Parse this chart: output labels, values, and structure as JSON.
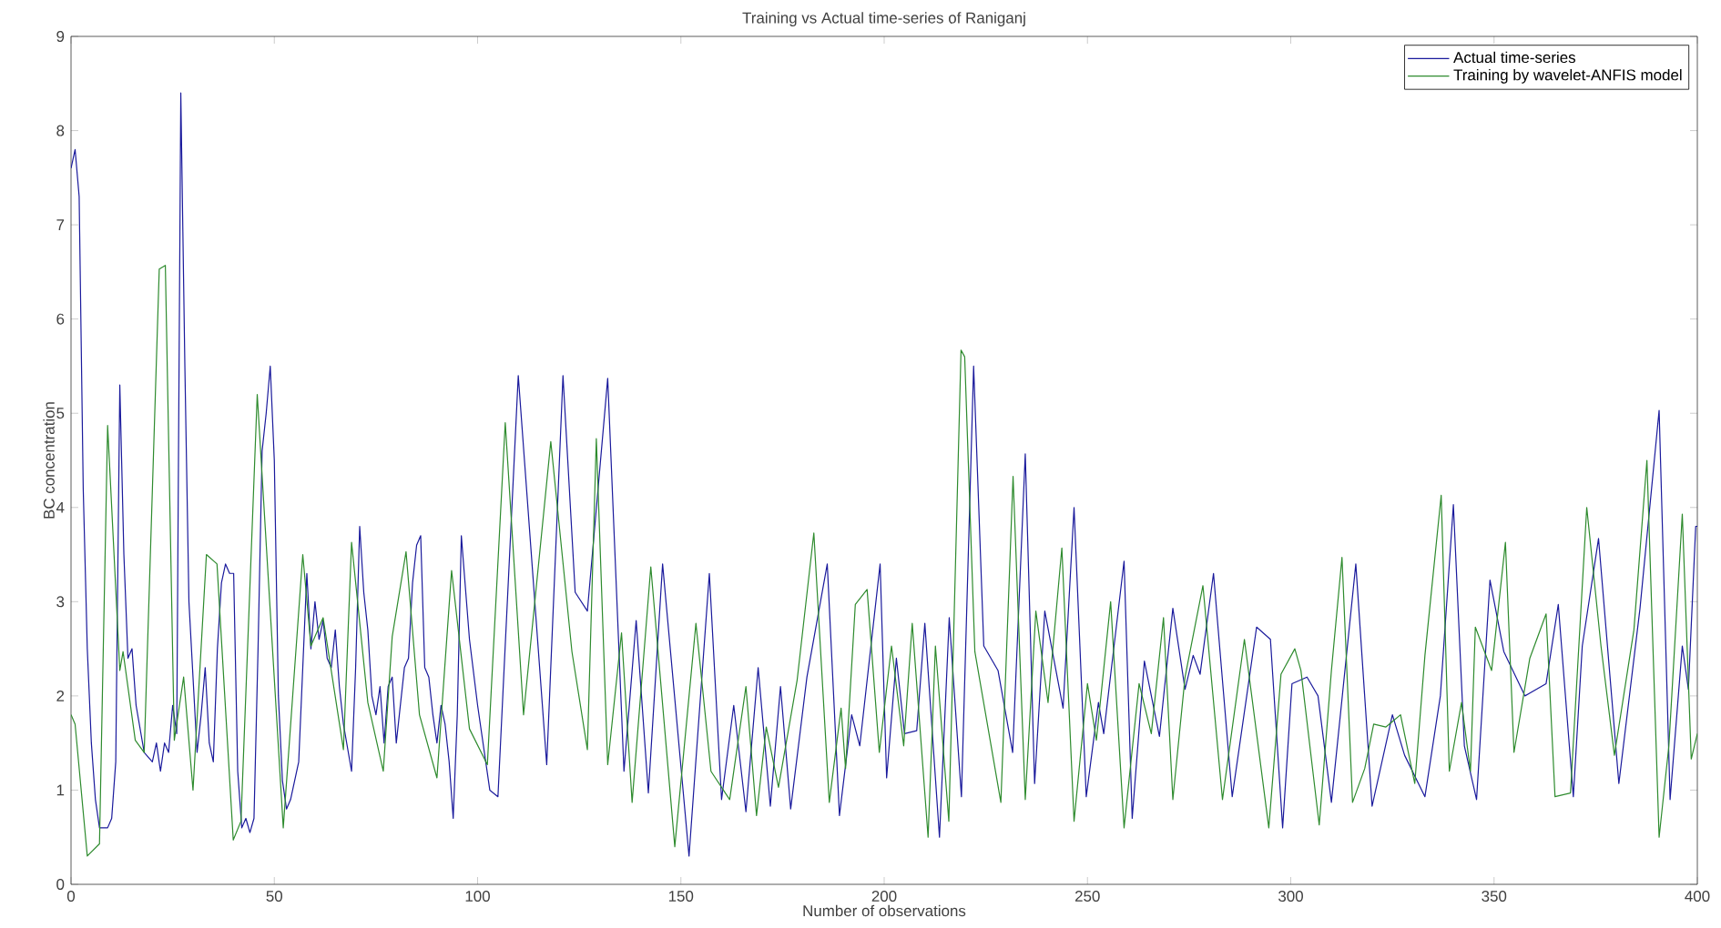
{
  "chart_data": {
    "type": "line",
    "title": "Training vs Actual time-series of Raniganj",
    "xlabel": "Number of observations",
    "ylabel": "BC concentration",
    "xlim": [
      0,
      400
    ],
    "xticks": [
      0,
      50,
      100,
      150,
      200,
      250,
      300,
      350,
      400
    ],
    "ylim": [
      0,
      9
    ],
    "yticks": [
      0,
      1,
      2,
      3,
      4,
      5,
      6,
      7,
      8,
      9
    ],
    "grid": false,
    "legend": "top right",
    "marker": "none",
    "line_style": "solid",
    "series": [
      {
        "name": "Actual time-series",
        "color": "#1a1a9c",
        "x": [
          0,
          1,
          2,
          3,
          4,
          5,
          6,
          7,
          9,
          10,
          11,
          12,
          13,
          14,
          15,
          16,
          18,
          20,
          21,
          22,
          23,
          24,
          25,
          26,
          27,
          28,
          29,
          30,
          31,
          32,
          33,
          34,
          35,
          36,
          37,
          38,
          39,
          40,
          41,
          42,
          43,
          44,
          45,
          46,
          47,
          48,
          49,
          50,
          51,
          52,
          53,
          54,
          56,
          57,
          58,
          59,
          60,
          61,
          62,
          63,
          64,
          65,
          66,
          67,
          69,
          70,
          71,
          72,
          73,
          74,
          75,
          76,
          77,
          78,
          79,
          80,
          82,
          83,
          84,
          85,
          86,
          87,
          88,
          89,
          90,
          91,
          92,
          93,
          94,
          95,
          96,
          98,
          100,
          103,
          105,
          110,
          117,
          121,
          124,
          127,
          132,
          136,
          139,
          142,
          145.5,
          152,
          157,
          160,
          163,
          166,
          169,
          172,
          174.5,
          177,
          181,
          186,
          189,
          192,
          194,
          199,
          200.6,
          203,
          205,
          208,
          210,
          213.6,
          216,
          219,
          222,
          224.5,
          228,
          231.6,
          234.7,
          237,
          239.5,
          244,
          246.7,
          249.7,
          252.7,
          254,
          259,
          261,
          264,
          267.7,
          271,
          274,
          276,
          277.7,
          281,
          285.6,
          291.6,
          295,
          298,
          300.3,
          304,
          306.7,
          310,
          316,
          320,
          325,
          328,
          333,
          336.8,
          340,
          342.7,
          345.7,
          349,
          352.4,
          357.6,
          362.8,
          365.8,
          369.5,
          371.7,
          375.7,
          380.7,
          385.9,
          390.6,
          393.3,
          396.3,
          397.8,
          399.6,
          400
        ],
        "values": [
          7.6,
          7.8,
          7.3,
          4.2,
          2.5,
          1.5,
          0.9,
          0.6,
          0.6,
          0.7,
          1.3,
          5.3,
          3.5,
          2.4,
          2.5,
          1.9,
          1.4,
          1.3,
          1.5,
          1.2,
          1.5,
          1.4,
          1.9,
          1.6,
          8.4,
          5.5,
          3.0,
          2.2,
          1.4,
          1.8,
          2.3,
          1.5,
          1.3,
          2.5,
          3.2,
          3.4,
          3.3,
          3.3,
          1.2,
          0.6,
          0.7,
          0.55,
          0.7,
          2.5,
          4.6,
          5.0,
          5.5,
          4.5,
          2.0,
          1.1,
          0.8,
          0.9,
          1.3,
          2.3,
          3.3,
          2.5,
          3.0,
          2.6,
          2.8,
          2.4,
          2.3,
          2.7,
          2.1,
          1.7,
          1.2,
          2.3,
          3.8,
          3.1,
          2.7,
          2.0,
          1.8,
          2.1,
          1.5,
          2.1,
          2.2,
          1.5,
          2.3,
          2.4,
          3.2,
          3.6,
          3.7,
          2.3,
          2.2,
          1.8,
          1.5,
          1.9,
          1.7,
          1.3,
          0.7,
          1.8,
          3.7,
          2.6,
          1.9,
          1.0,
          0.93,
          5.4,
          1.27,
          5.4,
          3.1,
          2.9,
          5.37,
          1.2,
          2.8,
          0.97,
          3.4,
          0.3,
          3.3,
          0.9,
          1.9,
          0.77,
          2.3,
          0.83,
          2.1,
          0.8,
          2.2,
          3.4,
          0.73,
          1.8,
          1.47,
          3.4,
          1.13,
          2.4,
          1.6,
          1.63,
          2.77,
          0.5,
          2.83,
          0.93,
          5.5,
          2.53,
          2.27,
          1.4,
          4.57,
          1.07,
          2.9,
          1.87,
          4.0,
          0.93,
          1.93,
          1.6,
          3.43,
          0.7,
          2.37,
          1.57,
          2.93,
          2.07,
          2.43,
          2.23,
          3.3,
          0.93,
          2.73,
          2.6,
          0.6,
          2.13,
          2.2,
          2.0,
          0.87,
          3.4,
          0.83,
          1.8,
          1.37,
          0.93,
          2.0,
          4.03,
          1.47,
          0.9,
          3.23,
          2.47,
          2.0,
          2.13,
          2.97,
          0.93,
          2.53,
          3.67,
          1.07,
          2.93,
          5.03,
          0.9,
          2.53,
          2.07,
          3.8,
          3.8
        ]
      },
      {
        "name": "Training by wavelet-ANFIS model",
        "color": "#2e8b2e",
        "x": [
          0,
          1,
          4,
          7,
          9,
          12,
          12.8,
          15.8,
          18,
          21.7,
          23.2,
          25.4,
          27.7,
          30,
          33.3,
          35.9,
          39.9,
          41.8,
          45.8,
          52.2,
          57,
          59,
          62,
          67,
          69,
          73,
          76.8,
          79,
          82.4,
          85.7,
          90,
          93.6,
          98,
          102.4,
          106.8,
          111.3,
          118,
          123.2,
          127,
          129.2,
          132,
          135.4,
          138,
          142.6,
          148.5,
          153.7,
          157.4,
          162,
          166,
          168.6,
          171,
          174,
          178.6,
          182.7,
          186.5,
          189.4,
          190.5,
          192.9,
          195.8,
          198.8,
          201.8,
          204.8,
          206.9,
          210.8,
          212.6,
          215.9,
          218.9,
          219.8,
          222.3,
          228.7,
          231.7,
          234.7,
          237.3,
          240.3,
          243.7,
          246.7,
          250,
          252.2,
          255.7,
          259,
          262.7,
          265.7,
          268.7,
          271,
          274,
          278.4,
          283.2,
          288.6,
          294.6,
          297.6,
          301,
          302.5,
          307,
          310,
          312.6,
          315.2,
          318.2,
          320.4,
          323.4,
          327,
          330.5,
          333,
          337,
          339,
          342,
          344.2,
          345.4,
          349.4,
          352.8,
          354.9,
          358.8,
          362.8,
          365,
          368.8,
          372.8,
          376.3,
          379.6,
          384.4,
          387.6,
          390.6,
          393,
          396.3,
          398.5,
          400
        ],
        "values": [
          1.8,
          1.7,
          0.3,
          0.43,
          4.87,
          2.27,
          2.47,
          1.53,
          1.4,
          6.53,
          6.57,
          1.53,
          2.2,
          1.0,
          3.5,
          3.4,
          0.47,
          0.67,
          5.2,
          0.6,
          3.5,
          2.53,
          2.83,
          1.43,
          3.63,
          1.93,
          1.2,
          2.63,
          3.53,
          1.8,
          1.13,
          3.33,
          1.65,
          1.27,
          4.9,
          1.8,
          4.7,
          2.47,
          1.43,
          4.73,
          1.27,
          2.67,
          0.87,
          3.37,
          0.4,
          2.77,
          1.2,
          0.9,
          2.1,
          0.73,
          1.67,
          1.03,
          2.17,
          3.73,
          0.87,
          1.87,
          1.23,
          2.97,
          3.13,
          1.4,
          2.53,
          1.47,
          2.77,
          0.5,
          2.53,
          0.67,
          5.67,
          5.6,
          2.47,
          0.87,
          4.33,
          0.9,
          2.9,
          1.93,
          3.57,
          0.67,
          2.13,
          1.53,
          3.0,
          0.6,
          2.13,
          1.6,
          2.83,
          0.9,
          2.2,
          3.17,
          0.9,
          2.6,
          0.6,
          2.23,
          2.5,
          2.27,
          0.63,
          2.27,
          3.47,
          0.87,
          1.23,
          1.7,
          1.67,
          1.8,
          1.07,
          2.43,
          4.13,
          1.2,
          1.93,
          1.2,
          2.73,
          2.27,
          3.63,
          1.4,
          2.4,
          2.87,
          0.93,
          0.97,
          4.0,
          2.53,
          1.37,
          2.7,
          4.5,
          0.5,
          1.47,
          3.93,
          1.33,
          1.6
        ]
      }
    ]
  }
}
